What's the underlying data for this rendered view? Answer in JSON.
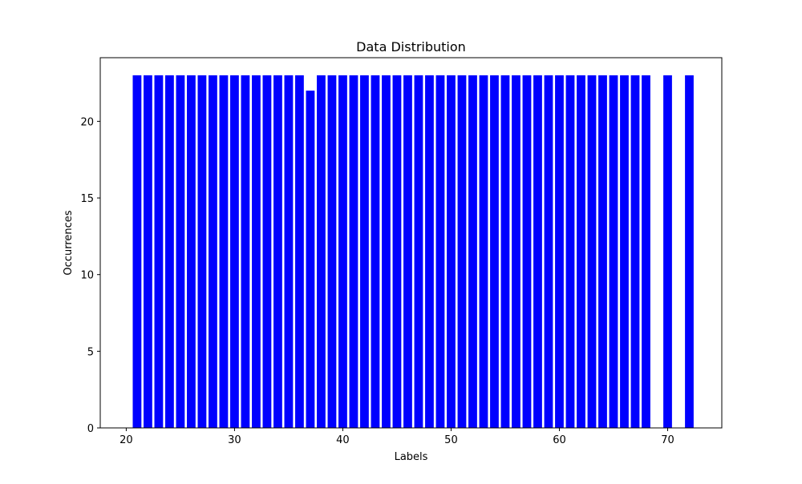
{
  "chart_data": {
    "type": "bar",
    "title": "Data Distribution",
    "xlabel": "Labels",
    "ylabel": "Occurrences",
    "xlim": [
      17.6,
      75.0
    ],
    "ylim": [
      0,
      24.15
    ],
    "x_ticks": [
      20,
      30,
      40,
      50,
      60,
      70
    ],
    "y_ticks": [
      0,
      5,
      10,
      15,
      20
    ],
    "bar_color": "#0000ff",
    "grid": false,
    "x": [
      21,
      22,
      23,
      24,
      25,
      26,
      27,
      28,
      29,
      30,
      31,
      32,
      33,
      34,
      35,
      36,
      37,
      38,
      39,
      40,
      41,
      42,
      43,
      44,
      45,
      46,
      47,
      48,
      49,
      50,
      51,
      52,
      53,
      54,
      55,
      56,
      57,
      58,
      59,
      60,
      61,
      62,
      63,
      64,
      65,
      66,
      67,
      68,
      70,
      72
    ],
    "values": [
      23,
      23,
      23,
      23,
      23,
      23,
      23,
      23,
      23,
      23,
      23,
      23,
      23,
      23,
      23,
      23,
      22,
      23,
      23,
      23,
      23,
      23,
      23,
      23,
      23,
      23,
      23,
      23,
      23,
      23,
      23,
      23,
      23,
      23,
      23,
      23,
      23,
      23,
      23,
      23,
      23,
      23,
      23,
      23,
      23,
      23,
      23,
      23,
      23,
      23
    ]
  }
}
